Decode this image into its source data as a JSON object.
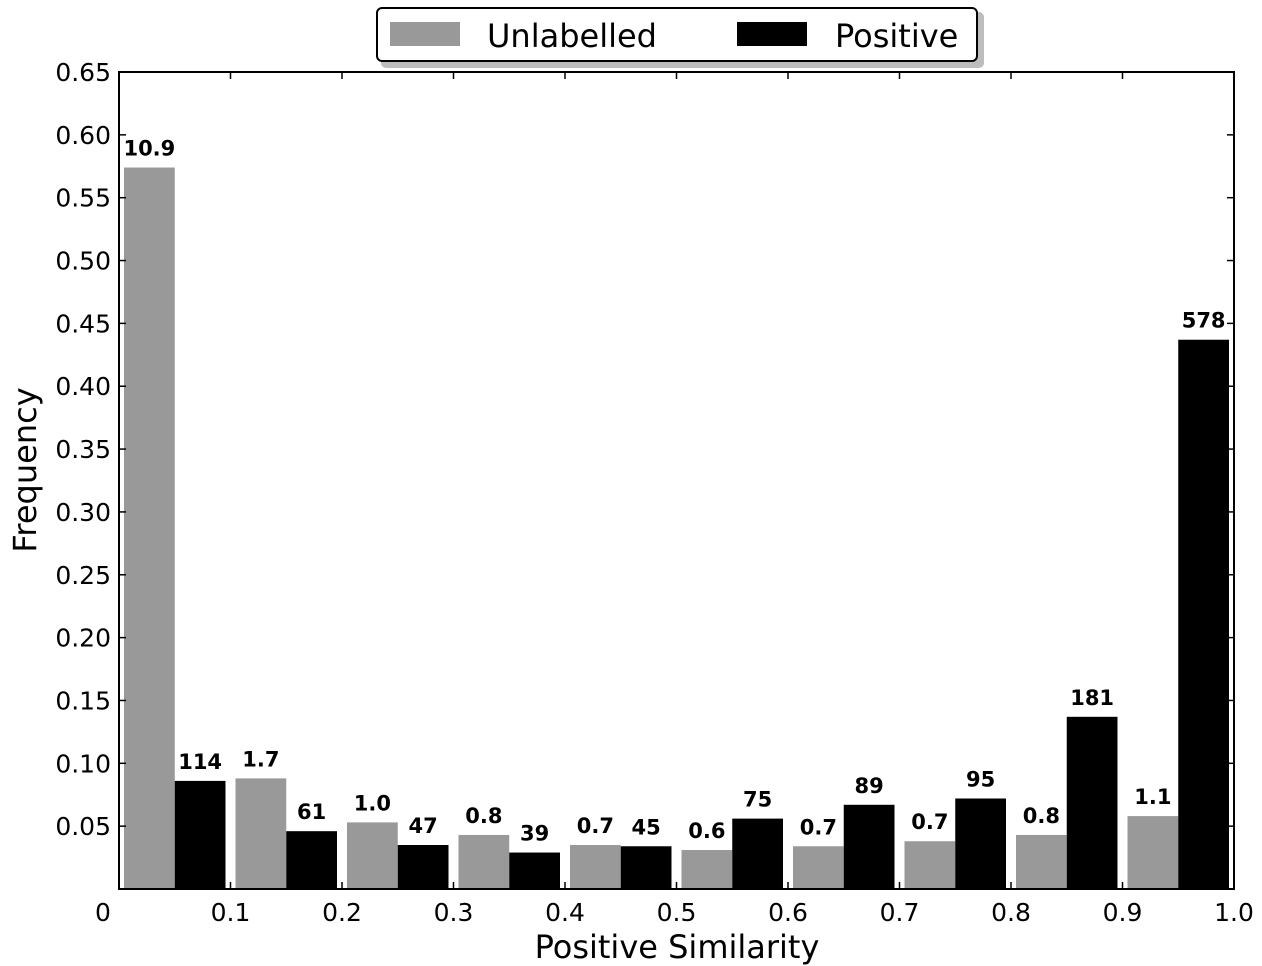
{
  "chart_data": {
    "type": "bar",
    "xlabel": "Positive Similarity",
    "ylabel": "Frequency",
    "xlim": [
      0,
      1.0
    ],
    "ylim": [
      0,
      0.65
    ],
    "x_ticks": [
      "0",
      "0.1",
      "0.2",
      "0.3",
      "0.4",
      "0.5",
      "0.6",
      "0.7",
      "0.8",
      "0.9",
      "1.0"
    ],
    "y_ticks": [
      "0.05",
      "0.10",
      "0.15",
      "0.20",
      "0.25",
      "0.30",
      "0.35",
      "0.40",
      "0.45",
      "0.50",
      "0.55",
      "0.60",
      "0.65"
    ],
    "bins": [
      [
        0.0,
        0.1
      ],
      [
        0.1,
        0.2
      ],
      [
        0.2,
        0.3
      ],
      [
        0.3,
        0.4
      ],
      [
        0.4,
        0.5
      ],
      [
        0.5,
        0.6
      ],
      [
        0.6,
        0.7
      ],
      [
        0.7,
        0.8
      ],
      [
        0.8,
        0.9
      ],
      [
        0.9,
        1.0
      ]
    ],
    "series": [
      {
        "name": "Unlabelled",
        "color": "#999999",
        "values": [
          0.574,
          0.088,
          0.053,
          0.043,
          0.035,
          0.031,
          0.034,
          0.038,
          0.043,
          0.058
        ],
        "labels": [
          "10.9",
          "1.7",
          "1.0",
          "0.8",
          "0.7",
          "0.6",
          "0.7",
          "0.7",
          "0.8",
          "1.1"
        ]
      },
      {
        "name": "Positive",
        "color": "#000000",
        "values": [
          0.086,
          0.046,
          0.035,
          0.029,
          0.034,
          0.056,
          0.067,
          0.072,
          0.137,
          0.437
        ],
        "labels": [
          "114",
          "61",
          "47",
          "39",
          "45",
          "75",
          "89",
          "95",
          "181",
          "578"
        ]
      }
    ],
    "legend": {
      "position": "top-center",
      "entries": [
        "Unlabelled",
        "Positive"
      ]
    },
    "grid": false
  }
}
